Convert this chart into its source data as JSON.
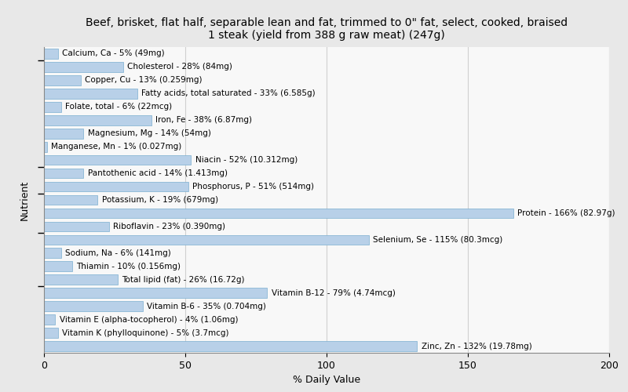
{
  "title": "Beef, brisket, flat half, separable lean and fat, trimmed to 0\" fat, select, cooked, braised\n1 steak (yield from 388 g raw meat) (247g)",
  "xlabel": "% Daily Value",
  "ylabel": "Nutrient",
  "nutrients": [
    "Calcium, Ca - 5% (49mg)",
    "Cholesterol - 28% (84mg)",
    "Copper, Cu - 13% (0.259mg)",
    "Fatty acids, total saturated - 33% (6.585g)",
    "Folate, total - 6% (22mcg)",
    "Iron, Fe - 38% (6.87mg)",
    "Magnesium, Mg - 14% (54mg)",
    "Manganese, Mn - 1% (0.027mg)",
    "Niacin - 52% (10.312mg)",
    "Pantothenic acid - 14% (1.413mg)",
    "Phosphorus, P - 51% (514mg)",
    "Potassium, K - 19% (679mg)",
    "Protein - 166% (82.97g)",
    "Riboflavin - 23% (0.390mg)",
    "Selenium, Se - 115% (80.3mcg)",
    "Sodium, Na - 6% (141mg)",
    "Thiamin - 10% (0.156mg)",
    "Total lipid (fat) - 26% (16.72g)",
    "Vitamin B-12 - 79% (4.74mcg)",
    "Vitamin B-6 - 35% (0.704mg)",
    "Vitamin E (alpha-tocopherol) - 4% (1.06mg)",
    "Vitamin K (phylloquinone) - 5% (3.7mcg)",
    "Zinc, Zn - 132% (19.78mg)"
  ],
  "values": [
    5,
    28,
    13,
    33,
    6,
    38,
    14,
    1,
    52,
    14,
    51,
    19,
    166,
    23,
    115,
    6,
    10,
    26,
    79,
    35,
    4,
    5,
    132
  ],
  "bar_color": "#b8d0e8",
  "bar_edge_color": "#7aaed0",
  "background_color": "#e8e8e8",
  "plot_background_color": "#f8f8f8",
  "xlim": [
    0,
    200
  ],
  "xticks": [
    0,
    50,
    100,
    150,
    200
  ],
  "grid_color": "#d0d0d0",
  "title_fontsize": 10,
  "label_fontsize": 7.5,
  "tick_fontsize": 9,
  "bar_height": 0.75,
  "ytick_positions": [
    22.5,
    15.5,
    12.5,
    11.5,
    8.5,
    4.5
  ],
  "group_ticks": [
    21.5,
    13.5,
    11.5,
    8.5,
    4.5
  ]
}
